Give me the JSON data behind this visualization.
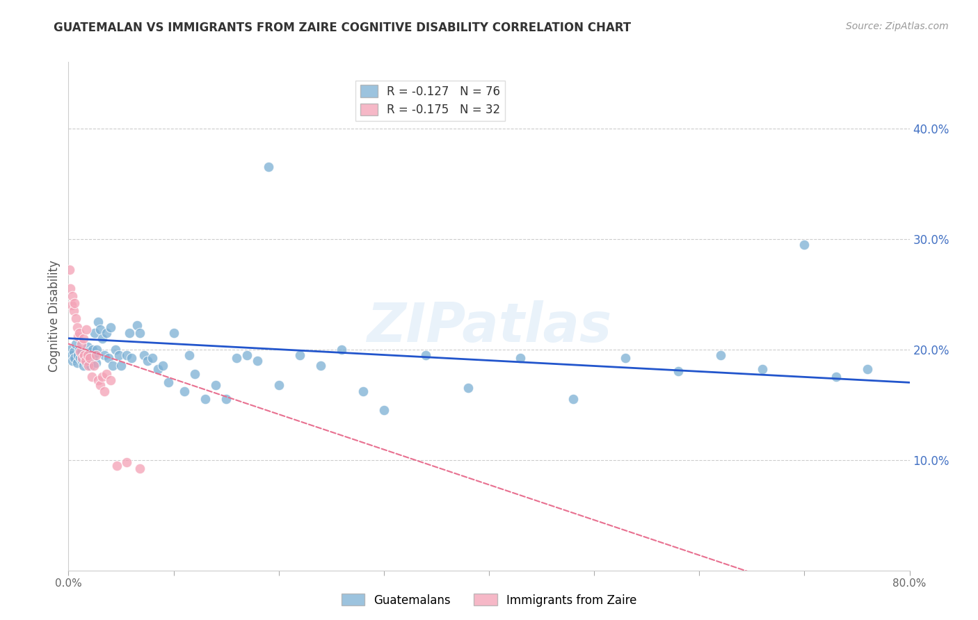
{
  "title": "GUATEMALAN VS IMMIGRANTS FROM ZAIRE COGNITIVE DISABILITY CORRELATION CHART",
  "source": "Source: ZipAtlas.com",
  "ylabel": "Cognitive Disability",
  "xlim": [
    0.0,
    0.8
  ],
  "ylim": [
    0.0,
    0.46
  ],
  "xticks": [
    0.0,
    0.1,
    0.2,
    0.3,
    0.4,
    0.5,
    0.6,
    0.7,
    0.8
  ],
  "xticklabels": [
    "0.0%",
    "",
    "",
    "",
    "",
    "",
    "",
    "",
    "80.0%"
  ],
  "yticks_right": [
    0.1,
    0.2,
    0.3,
    0.4
  ],
  "ytick_labels_right": [
    "10.0%",
    "20.0%",
    "30.0%",
    "40.0%"
  ],
  "guatemalan_R": -0.127,
  "guatemalan_N": 76,
  "zaire_R": -0.175,
  "zaire_N": 32,
  "guatemalan_color": "#7bafd4",
  "zaire_color": "#f4a0b5",
  "guatemalan_line_color": "#2255cc",
  "zaire_line_color": "#e87090",
  "watermark": "ZIPatlas",
  "legend_labels": [
    "Guatemalans",
    "Immigrants from Zaire"
  ],
  "guatemalan_x": [
    0.002,
    0.003,
    0.004,
    0.005,
    0.006,
    0.007,
    0.008,
    0.009,
    0.01,
    0.011,
    0.012,
    0.013,
    0.014,
    0.015,
    0.016,
    0.017,
    0.018,
    0.019,
    0.02,
    0.021,
    0.022,
    0.023,
    0.024,
    0.025,
    0.026,
    0.027,
    0.028,
    0.03,
    0.032,
    0.034,
    0.036,
    0.038,
    0.04,
    0.042,
    0.045,
    0.048,
    0.05,
    0.055,
    0.058,
    0.06,
    0.065,
    0.068,
    0.072,
    0.075,
    0.08,
    0.085,
    0.09,
    0.095,
    0.1,
    0.11,
    0.115,
    0.12,
    0.13,
    0.14,
    0.15,
    0.16,
    0.17,
    0.18,
    0.19,
    0.2,
    0.22,
    0.24,
    0.26,
    0.28,
    0.3,
    0.34,
    0.38,
    0.43,
    0.48,
    0.53,
    0.58,
    0.62,
    0.66,
    0.7,
    0.73,
    0.76
  ],
  "guatemalan_y": [
    0.2,
    0.195,
    0.19,
    0.198,
    0.192,
    0.205,
    0.188,
    0.195,
    0.2,
    0.192,
    0.198,
    0.19,
    0.185,
    0.195,
    0.192,
    0.188,
    0.202,
    0.195,
    0.198,
    0.185,
    0.192,
    0.2,
    0.195,
    0.215,
    0.188,
    0.2,
    0.225,
    0.218,
    0.21,
    0.195,
    0.215,
    0.192,
    0.22,
    0.185,
    0.2,
    0.195,
    0.185,
    0.195,
    0.215,
    0.192,
    0.222,
    0.215,
    0.195,
    0.19,
    0.192,
    0.182,
    0.185,
    0.17,
    0.215,
    0.162,
    0.195,
    0.178,
    0.155,
    0.168,
    0.155,
    0.192,
    0.195,
    0.19,
    0.365,
    0.168,
    0.195,
    0.185,
    0.2,
    0.162,
    0.145,
    0.195,
    0.165,
    0.192,
    0.155,
    0.192,
    0.18,
    0.195,
    0.182,
    0.295,
    0.175,
    0.182
  ],
  "zaire_x": [
    0.001,
    0.002,
    0.003,
    0.004,
    0.005,
    0.006,
    0.007,
    0.008,
    0.009,
    0.01,
    0.011,
    0.012,
    0.013,
    0.014,
    0.015,
    0.016,
    0.017,
    0.018,
    0.019,
    0.02,
    0.022,
    0.024,
    0.026,
    0.028,
    0.03,
    0.032,
    0.034,
    0.036,
    0.04,
    0.046,
    0.055,
    0.068
  ],
  "zaire_y": [
    0.272,
    0.255,
    0.24,
    0.248,
    0.235,
    0.242,
    0.228,
    0.22,
    0.212,
    0.215,
    0.198,
    0.205,
    0.192,
    0.21,
    0.195,
    0.19,
    0.218,
    0.195,
    0.185,
    0.192,
    0.175,
    0.185,
    0.195,
    0.172,
    0.168,
    0.175,
    0.162,
    0.178,
    0.172,
    0.095,
    0.098,
    0.092
  ]
}
